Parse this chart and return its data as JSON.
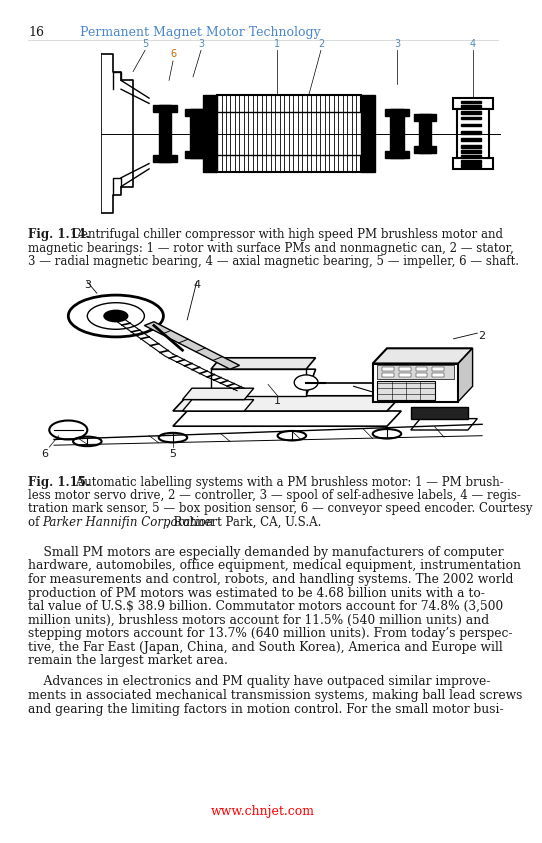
{
  "page_number": "16",
  "header_title": "Permanent Magnet Motor Technology",
  "header_color": "#4a86c8",
  "page_number_color": "#000000",
  "background_color": "#ffffff",
  "text_color": "#1a1a1a",
  "label_color": "#5588bb",
  "watermark": "www.chnjet.com",
  "watermark_color": "#ff0000",
  "fig114_bold": "Fig. 1.14.",
  "fig114_text": " Centrifugal chiller compressor with high speed PM brushless motor and magnetic bearings: 1 — rotor with surface PMs and nonmagnetic can, 2 — stator, 3 — radial magnetic bearing, 4 — axial magnetic bearing, 5 — impeller, 6 — shaft.",
  "fig115_bold": "Fig. 1.15.",
  "fig115_text1": " Automatic labelling systems with a PM brushless motor: 1 — PM brush-",
  "fig115_text2": "less motor servo drive, 2 — controller, 3 — spool of self-adhesive labels, 4 — regis-",
  "fig115_text3": "tration mark sensor, 5 — box position sensor, 6 — conveyor speed encoder. Courtesy",
  "fig115_text4a": "of ",
  "fig115_italic": "Parker Hannifin Corporation",
  "fig115_text4b": ", Rohnert Park, CA, U.S.A.",
  "cap114_lines": [
    "Centrifugal chiller compressor with high speed PM brushless motor and",
    "magnetic bearings: 1 — rotor with surface PMs and nonmagnetic can, 2 — stator,",
    "3 — radial magnetic bearing, 4 — axial magnetic bearing, 5 — impeller, 6 — shaft."
  ],
  "cap115_lines": [
    " Automatic labelling systems with a PM brushless motor: 1 — PM brush-",
    "less motor servo drive, 2 — controller, 3 — spool of self-adhesive labels, 4 — regis-",
    "tration mark sensor, 5 — box position sensor, 6 — conveyor speed encoder. Courtesy",
    "of "
  ],
  "para1_lines": [
    "    Small PM motors are especially demanded by manufacturers of computer",
    "hardware, automobiles, office equipment, medical equipment, instrumentation",
    "for measurements and control, robots, and handling systems. The 2002 world",
    "production of PM motors was estimated to be 4.68 billion units with a to-",
    "tal value of U.S.$ 38.9 billion. Commutator motors account for 74.8% (3,500",
    "million units), brushless motors account for 11.5% (540 million units) and",
    "stepping motors account for 13.7% (640 million units). From today’s perspec-",
    "tive, the Far East (Japan, China, and South Korea), America and Europe will",
    "remain the largest market area."
  ],
  "para2_lines": [
    "    Advances in electronics and PM quality have outpaced similar improve-",
    "ments in associated mechanical transmission systems, making ball lead screws",
    "and gearing the limiting factors in motion control. For the small motor busi-"
  ]
}
